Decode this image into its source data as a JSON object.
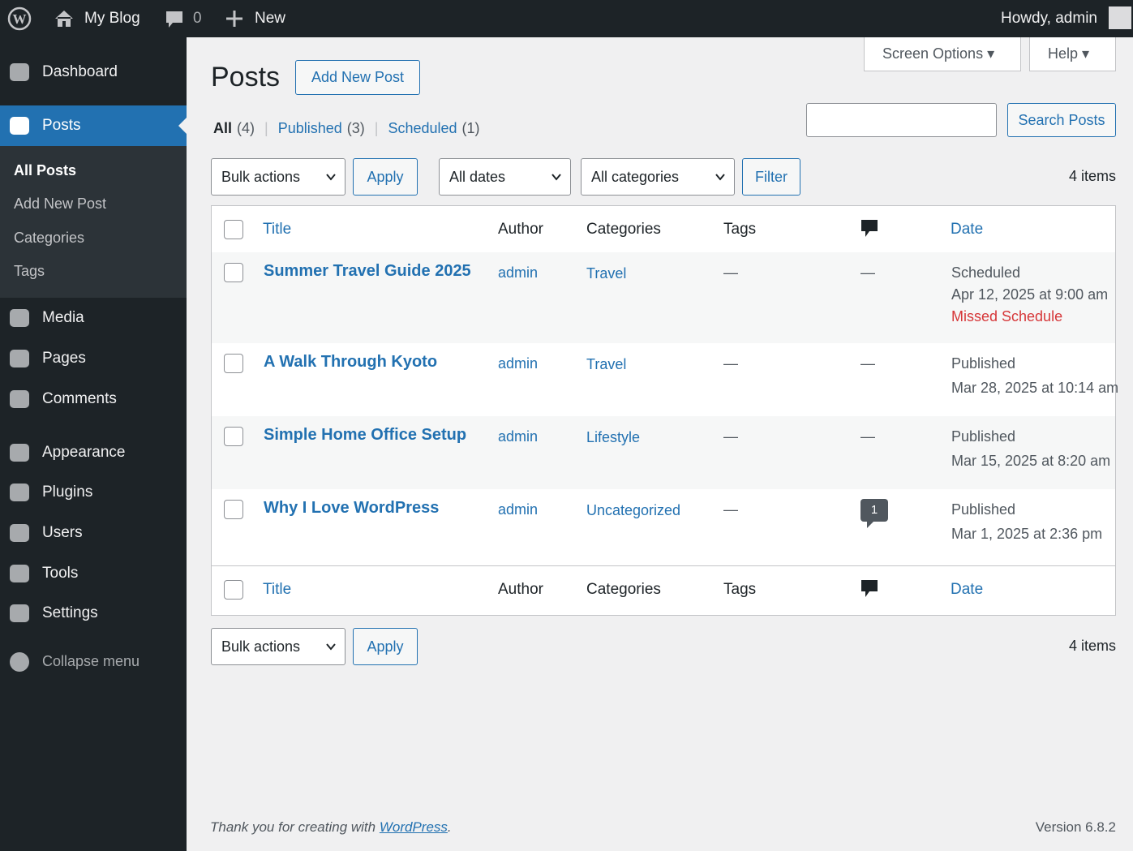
{
  "admin_bar": {
    "site": "My Blog",
    "comments": "0",
    "new": "New",
    "howdy": "Howdy, admin"
  },
  "menu": {
    "items": [
      "Dashboard",
      "Posts",
      "Media",
      "Pages",
      "Comments",
      "Appearance",
      "Plugins",
      "Users",
      "Tools",
      "Settings"
    ],
    "submenu": [
      "All Posts",
      "Add New Post",
      "Categories",
      "Tags"
    ],
    "collapse": "Collapse menu"
  },
  "header": {
    "title": "Posts",
    "add_new": "Add New Post",
    "screen_options": "Screen Options",
    "help": "Help"
  },
  "views": [
    {
      "label": "All",
      "count": "(4)"
    },
    {
      "label": "Published",
      "count": "(3)"
    },
    {
      "label": "Scheduled",
      "count": "(1)"
    }
  ],
  "search": {
    "button": "Search Posts"
  },
  "filters": {
    "bulk": "Bulk actions",
    "apply": "Apply",
    "dates": "All dates",
    "categories": "All categories",
    "filter": "Filter",
    "items": "4 items"
  },
  "table": {
    "columns": [
      "Title",
      "Author",
      "Categories",
      "Tags",
      "Date"
    ],
    "rows": [
      {
        "title": "Summer Travel Guide 2025",
        "author": "admin",
        "category": "Travel",
        "tags": "—",
        "comments": "—",
        "status": "Scheduled",
        "date": "Apr 12, 2025 at 9:00 am",
        "note": "Missed Schedule"
      },
      {
        "title": "A Walk Through Kyoto",
        "author": "admin",
        "category": "Travel",
        "tags": "—",
        "comments": "—",
        "status": "Published",
        "date": "Mar 28, 2025 at 10:14 am"
      },
      {
        "title": "Simple Home Office Setup",
        "author": "admin",
        "category": "Lifestyle",
        "tags": "—",
        "comments": "—",
        "status": "Published",
        "date": "Mar 15, 2025 at 8:20 am"
      },
      {
        "title": "Why I Love WordPress",
        "author": "admin",
        "category": "Uncategorized",
        "tags": "—",
        "comments": "1",
        "status": "Published",
        "date": "Mar 1, 2025 at 2:36 pm"
      }
    ]
  },
  "footer": {
    "thanks": "Thank you for creating with",
    "link": "WordPress",
    "period": ".",
    "version": "Version 6.8.2"
  }
}
